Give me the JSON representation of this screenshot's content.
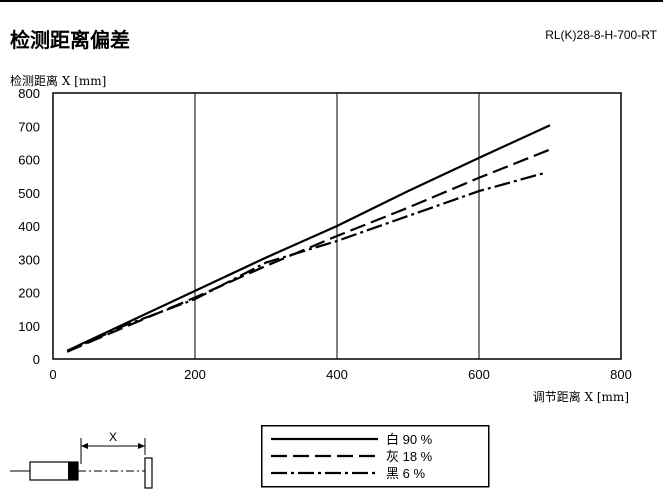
{
  "page": {
    "title": "检测距离偏差",
    "model": "RL(K)28-8-H-700-RT",
    "sensor_dimension_label": "X"
  },
  "chart_data": {
    "type": "line",
    "title": "检测距离偏差",
    "xlabel": "调节距离 X [mm]",
    "ylabel": "检测距离 X [mm]",
    "xlim": [
      0,
      800
    ],
    "ylim": [
      0,
      800
    ],
    "xticks": [
      0,
      200,
      400,
      600,
      800
    ],
    "yticks": [
      0,
      100,
      200,
      300,
      400,
      500,
      600,
      700,
      800
    ],
    "grid": true,
    "legend_position": "bottom-center",
    "series": [
      {
        "name": "白 90 %",
        "dash": "solid",
        "x": [
          20,
          100,
          200,
          300,
          400,
          500,
          600,
          700
        ],
        "y": [
          25,
          105,
          205,
          305,
          400,
          505,
          605,
          703
        ]
      },
      {
        "name": "灰 18 %",
        "dash": "dash",
        "x": [
          20,
          100,
          200,
          300,
          400,
          500,
          600,
          700
        ],
        "y": [
          22,
          95,
          185,
          280,
          370,
          455,
          545,
          630
        ]
      },
      {
        "name": "黑 6 %",
        "dash": "dashdot",
        "x": [
          20,
          100,
          200,
          300,
          400,
          500,
          600,
          690
        ],
        "y": [
          22,
          100,
          180,
          290,
          355,
          430,
          505,
          558
        ]
      }
    ]
  }
}
